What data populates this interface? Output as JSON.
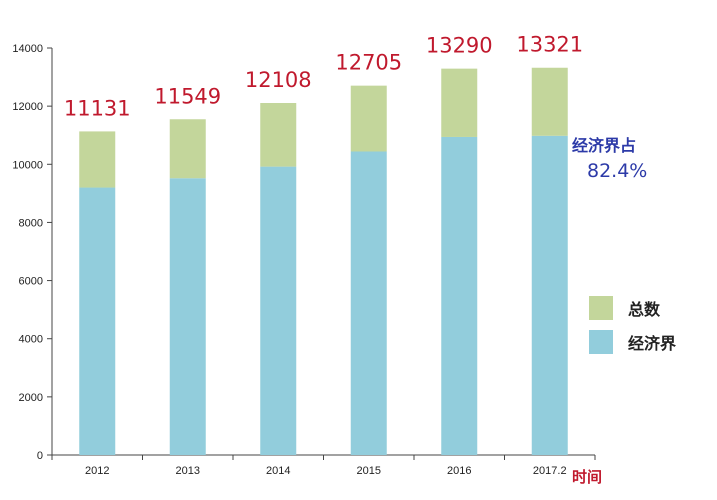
{
  "chart_data": {
    "type": "bar",
    "stacked": true,
    "categories": [
      "2012",
      "2013",
      "2014",
      "2015",
      "2016",
      "2017.2"
    ],
    "series": [
      {
        "name": "经济界",
        "values": [
          9200,
          9520,
          9920,
          10440,
          10940,
          10980
        ],
        "color": "#92cddc"
      },
      {
        "name": "总数",
        "values": [
          1931,
          2029,
          2188,
          2265,
          2350,
          2341
        ],
        "color": "#c3d69b"
      }
    ],
    "totals": [
      11131,
      11549,
      12108,
      12705,
      13290,
      13321
    ],
    "total_labels": [
      "11131",
      "11549",
      "12108",
      "12705",
      "13290",
      "13321"
    ],
    "yticks": [
      0,
      2000,
      4000,
      6000,
      8000,
      10000,
      12000,
      14000
    ],
    "ylim": [
      0,
      14000
    ],
    "xlabel": "时间",
    "ylabel": "",
    "title": "",
    "grid": false,
    "legend": {
      "position": "right",
      "entries": [
        {
          "name": "总数",
          "color": "#c3d69b"
        },
        {
          "name": "经济界",
          "color": "#92cddc"
        }
      ]
    },
    "annotation": {
      "line1": "经济界占",
      "line2": "82.4%"
    },
    "label_color": "#c0192d",
    "annotation_color": "#2c3aa8"
  }
}
